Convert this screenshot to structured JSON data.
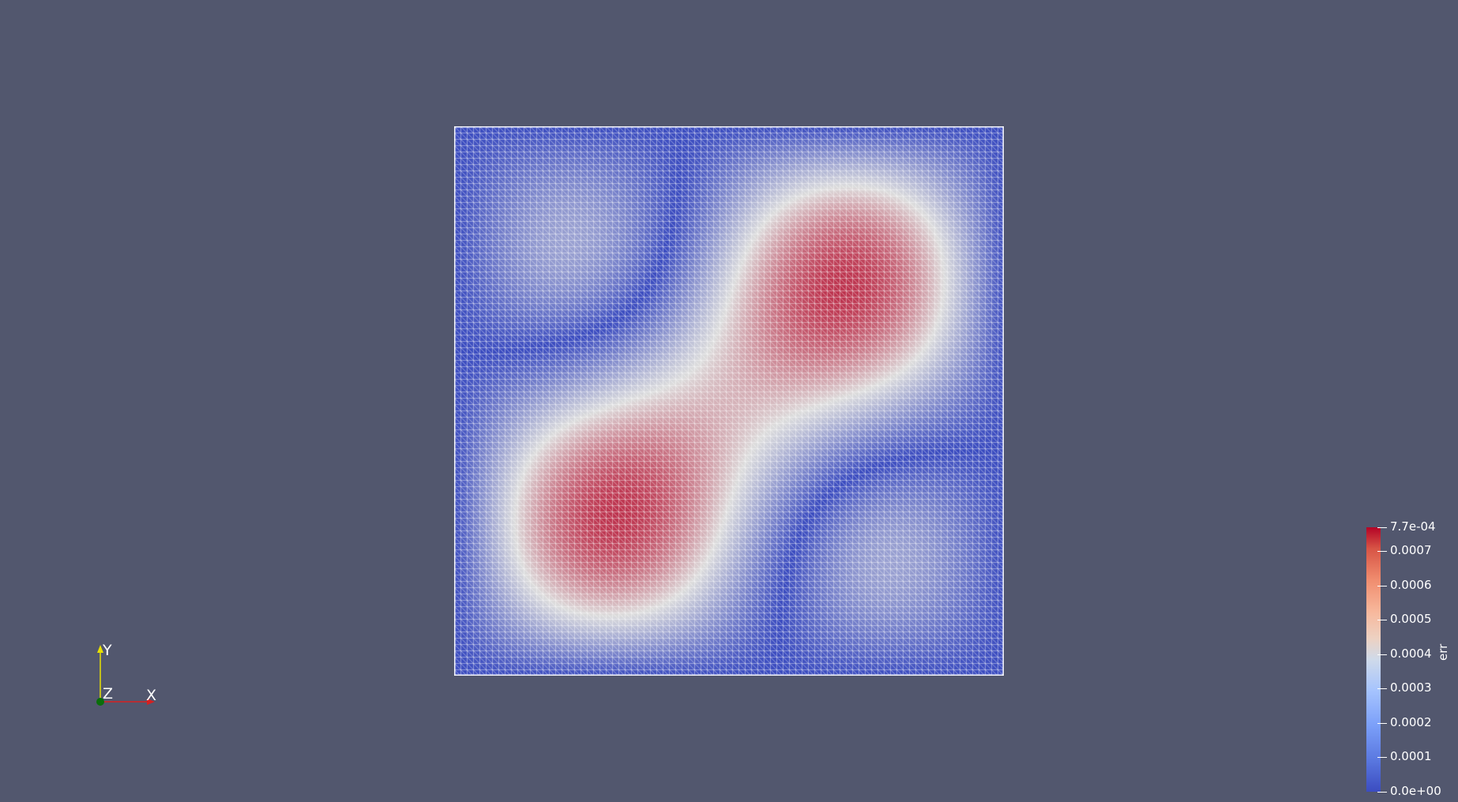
{
  "scene": {
    "background_color": "#52576e",
    "mesh_line_color": "#ffffff"
  },
  "field": {
    "colormap": "cool-to-warm",
    "low_color": "#3b4cc0",
    "mid_color": "#dddddd",
    "high_color": "#b40426"
  },
  "colorbar": {
    "title": "err",
    "range": [
      0,
      0.00077
    ],
    "max_label": "7.7e-04",
    "min_label": "0.0e+00",
    "ticks": [
      {
        "value": 0.0007,
        "label": "0.0007"
      },
      {
        "value": 0.0006,
        "label": "0.0006"
      },
      {
        "value": 0.0005,
        "label": "0.0005"
      },
      {
        "value": 0.0004,
        "label": "0.0004"
      },
      {
        "value": 0.0003,
        "label": "0.0003"
      },
      {
        "value": 0.0002,
        "label": "0.0002"
      },
      {
        "value": 0.0001,
        "label": "0.0001"
      }
    ]
  },
  "orientation_axes": {
    "x_label": "X",
    "y_label": "Y",
    "z_label": "Z",
    "x_color": "#d62020",
    "y_color": "#e8e000",
    "z_color": "#0a6e0a"
  }
}
